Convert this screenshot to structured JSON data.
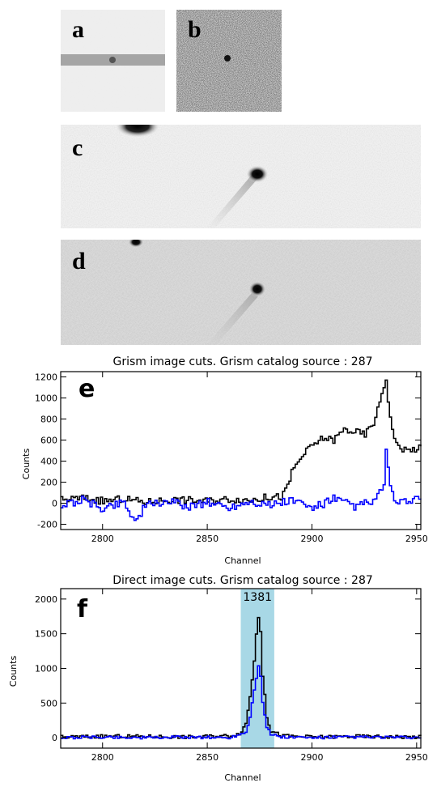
{
  "panels": {
    "a": {
      "label": "a"
    },
    "b": {
      "label": "b"
    },
    "c": {
      "label": "c"
    },
    "d": {
      "label": "d"
    }
  },
  "charts": [
    {
      "label": "e",
      "title": "Grism image cuts.  Grism catalog source : 287",
      "xlabel": "Channel",
      "ylabel": "Counts",
      "xticks": [
        2800,
        2850,
        2900,
        2950
      ],
      "yticks": [
        -200,
        0,
        200,
        400,
        600,
        800,
        1000,
        1200
      ],
      "colors": {
        "black_series": "#000000",
        "blue_series": "#0000ff"
      }
    },
    {
      "label": "f",
      "title": "Direct image cuts.  Grism catalog source : 287",
      "xlabel": "Channel",
      "ylabel": "Counts",
      "xticks": [
        2800,
        2850,
        2900,
        2950
      ],
      "yticks": [
        0,
        500,
        1000,
        1500,
        2000
      ],
      "annotation": "1381",
      "colors": {
        "black_series": "#000000",
        "blue_series": "#0000ff",
        "highlight": "#a8d8e6"
      }
    }
  ],
  "chart_data": [
    {
      "type": "line",
      "title": "Grism image cuts.  Grism catalog source : 287",
      "xlabel": "Channel",
      "ylabel": "Counts",
      "xlim": [
        2780,
        2952
      ],
      "ylim": [
        -250,
        1250
      ],
      "series": [
        {
          "color": "#000000",
          "x": [
            2780,
            2790,
            2800,
            2810,
            2820,
            2830,
            2840,
            2850,
            2860,
            2870,
            2880,
            2885,
            2888,
            2890,
            2895,
            2900,
            2905,
            2910,
            2915,
            2920,
            2925,
            2930,
            2933,
            2935,
            2937,
            2940,
            2945,
            2950
          ],
          "y": [
            30,
            50,
            20,
            40,
            10,
            30,
            30,
            20,
            40,
            30,
            60,
            60,
            150,
            300,
            450,
            550,
            620,
            600,
            700,
            680,
            650,
            800,
            1050,
            1180,
            800,
            550,
            500,
            520
          ]
        },
        {
          "color": "#0000ff",
          "x": [
            2780,
            2790,
            2800,
            2810,
            2815,
            2820,
            2830,
            2840,
            2850,
            2860,
            2870,
            2880,
            2890,
            2900,
            2910,
            2920,
            2930,
            2934,
            2935,
            2937,
            2940,
            2950
          ],
          "y": [
            -20,
            30,
            -50,
            20,
            -180,
            -30,
            20,
            -30,
            10,
            -40,
            20,
            -20,
            30,
            -50,
            40,
            -30,
            20,
            200,
            480,
            150,
            -20,
            50
          ]
        }
      ]
    },
    {
      "type": "line",
      "title": "Direct image cuts.  Grism catalog source : 287",
      "xlabel": "Channel",
      "ylabel": "Counts",
      "xlim": [
        2780,
        2952
      ],
      "ylim": [
        -150,
        2150
      ],
      "highlight_range": [
        2866,
        2882
      ],
      "annotation": "1381",
      "series": [
        {
          "color": "#000000",
          "x": [
            2780,
            2800,
            2820,
            2840,
            2860,
            2865,
            2868,
            2870,
            2872,
            2873,
            2874,
            2875,
            2876,
            2878,
            2880,
            2885,
            2890,
            2900,
            2920,
            2950
          ],
          "y": [
            10,
            20,
            20,
            10,
            30,
            60,
            200,
            600,
            1100,
            1500,
            1750,
            1550,
            900,
            300,
            100,
            30,
            20,
            10,
            20,
            10
          ],
          "name": ""
        },
        {
          "color": "#0000ff",
          "x": [
            2780,
            2800,
            2820,
            2840,
            2860,
            2868,
            2870,
            2872,
            2874,
            2875,
            2876,
            2878,
            2880,
            2885,
            2900,
            2920,
            2950
          ],
          "y": [
            0,
            10,
            0,
            10,
            0,
            80,
            300,
            700,
            1050,
            900,
            500,
            150,
            50,
            10,
            0,
            10,
            0
          ]
        }
      ]
    }
  ]
}
